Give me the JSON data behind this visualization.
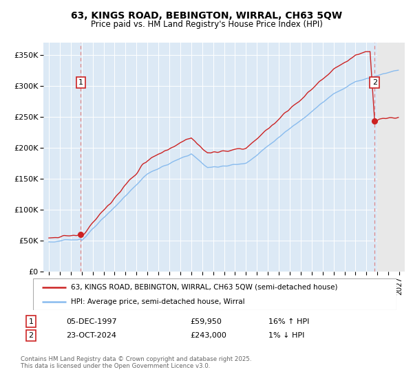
{
  "title": "63, KINGS ROAD, BEBINGTON, WIRRAL, CH63 5QW",
  "subtitle": "Price paid vs. HM Land Registry's House Price Index (HPI)",
  "background_color": "#ffffff",
  "plot_bg_color": "#dce9f5",
  "grid_color": "#ffffff",
  "red_line_color": "#cc2222",
  "blue_line_color": "#88bbee",
  "sale1_label": "05-DEC-1997",
  "sale1_price": "£59,950",
  "sale1_hpi": "16% ↑ HPI",
  "sale2_label": "23-OCT-2024",
  "sale2_price": "£243,000",
  "sale2_hpi": "1% ↓ HPI",
  "ylim": [
    0,
    370000
  ],
  "yticks": [
    0,
    50000,
    100000,
    150000,
    200000,
    250000,
    300000,
    350000
  ],
  "ytick_labels": [
    "£0",
    "£50K",
    "£100K",
    "£150K",
    "£200K",
    "£250K",
    "£300K",
    "£350K"
  ],
  "legend_label1": "63, KINGS ROAD, BEBINGTON, WIRRAL, CH63 5QW (semi-detached house)",
  "legend_label2": "HPI: Average price, semi-detached house, Wirral",
  "footnote": "Contains HM Land Registry data © Crown copyright and database right 2025.\nThis data is licensed under the Open Government Licence v3.0.",
  "dashed_line_color": "#dd8888",
  "hatch_color": "#cccccc",
  "future_start": 2025.0,
  "xlim_left": 1994.5,
  "xlim_right": 2027.5
}
